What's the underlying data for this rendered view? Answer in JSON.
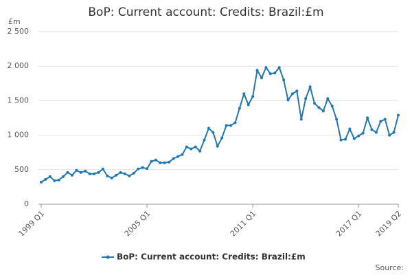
{
  "chart_data": {
    "type": "line",
    "title": "BoP: Current account: Credits: Brazil:£m",
    "y_label": "£m",
    "source": "Source:",
    "categories": [
      "1999 Q1",
      null,
      null,
      null,
      null,
      null,
      null,
      null,
      null,
      null,
      null,
      null,
      null,
      null,
      null,
      null,
      null,
      null,
      null,
      null,
      null,
      null,
      null,
      null,
      "2005 Q1",
      null,
      null,
      null,
      null,
      null,
      null,
      null,
      null,
      null,
      null,
      null,
      null,
      null,
      null,
      null,
      null,
      null,
      null,
      null,
      null,
      null,
      null,
      null,
      "2011 Q1",
      null,
      null,
      null,
      null,
      null,
      null,
      null,
      null,
      null,
      null,
      null,
      null,
      null,
      null,
      null,
      null,
      null,
      null,
      null,
      null,
      null,
      null,
      null,
      "2017 Q1",
      null,
      null,
      null,
      null,
      null,
      null,
      null,
      null,
      "2019 Q2"
    ],
    "series": [
      {
        "name": "BoP: Current account: Credits: Brazil:£m",
        "color": "#1f77b4",
        "values": [
          320,
          360,
          400,
          340,
          350,
          400,
          460,
          420,
          490,
          460,
          480,
          440,
          440,
          460,
          510,
          410,
          380,
          420,
          460,
          440,
          410,
          450,
          510,
          530,
          515,
          620,
          640,
          600,
          600,
          610,
          660,
          690,
          720,
          830,
          800,
          830,
          770,
          930,
          1100,
          1040,
          840,
          960,
          1140,
          1140,
          1180,
          1390,
          1600,
          1440,
          1560,
          1940,
          1830,
          1980,
          1890,
          1900,
          1980,
          1800,
          1510,
          1600,
          1640,
          1230,
          1530,
          1700,
          1460,
          1400,
          1350,
          1530,
          1420,
          1230,
          930,
          940,
          1090,
          950,
          990,
          1030,
          1250,
          1080,
          1040,
          1200,
          1230,
          1000,
          1040,
          1290
        ]
      }
    ],
    "ylim": [
      0,
      2500
    ],
    "yticks": [
      0,
      {
        "value": 500,
        "label": "500"
      },
      {
        "value": 1000,
        "label": "1 000"
      },
      {
        "value": 1500,
        "label": "1 500"
      },
      {
        "value": 2000,
        "label": "2 000"
      },
      {
        "value": 2500,
        "label": "2 500"
      }
    ],
    "grid": true
  }
}
